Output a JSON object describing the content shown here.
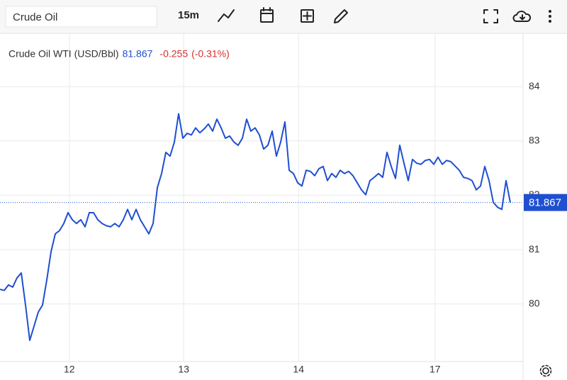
{
  "toolbar": {
    "search_value": "Crude Oil",
    "interval": "15m"
  },
  "chart_data": {
    "type": "line",
    "quote": {
      "name": "Crude Oil WTI (USD/Bbl)",
      "last": 81.867,
      "change": -0.255,
      "change_percent": {
        "value": -0.31,
        "label": "(-0.31%)"
      }
    },
    "x": [
      0,
      1,
      2,
      3,
      4,
      5,
      6,
      7,
      8,
      9,
      10,
      11,
      12,
      13,
      14,
      15,
      16,
      17,
      18,
      19,
      20,
      21,
      22,
      23,
      24,
      25,
      26,
      27,
      28,
      29,
      30,
      31,
      32,
      33,
      34,
      35,
      36,
      37,
      38,
      39,
      40,
      41,
      42,
      43,
      44,
      45,
      46,
      47,
      48,
      49,
      50,
      51,
      52,
      53,
      54,
      55,
      56,
      57,
      58,
      59,
      60,
      61,
      62,
      63,
      64,
      65,
      66,
      67,
      68,
      69,
      70,
      71,
      72,
      73,
      74,
      75,
      76,
      77,
      78,
      79,
      80,
      81,
      82,
      83,
      84,
      85,
      86,
      87,
      88,
      89,
      90,
      91,
      92,
      93,
      94,
      95,
      96,
      97,
      98,
      99,
      100,
      101,
      102,
      103,
      104,
      105,
      106,
      107,
      108,
      109,
      110,
      111,
      112,
      113,
      114,
      115,
      116,
      117,
      118,
      119,
      120
    ],
    "series": [
      {
        "color": "#1f4fd1",
        "values": [
          80.27,
          80.25,
          80.35,
          80.31,
          80.48,
          80.57,
          79.98,
          79.33,
          79.59,
          79.85,
          79.98,
          80.44,
          80.96,
          81.29,
          81.35,
          81.48,
          81.68,
          81.55,
          81.48,
          81.55,
          81.42,
          81.68,
          81.68,
          81.55,
          81.48,
          81.44,
          81.42,
          81.48,
          81.42,
          81.55,
          81.74,
          81.55,
          81.74,
          81.55,
          81.42,
          81.29,
          81.48,
          82.14,
          82.4,
          82.79,
          82.72,
          82.98,
          83.5,
          83.05,
          83.14,
          83.11,
          83.24,
          83.15,
          83.22,
          83.31,
          83.18,
          83.4,
          83.24,
          83.05,
          83.09,
          82.98,
          82.92,
          83.05,
          83.4,
          83.18,
          83.24,
          83.11,
          82.85,
          82.92,
          83.18,
          82.72,
          82.98,
          83.35,
          82.46,
          82.4,
          82.23,
          82.17,
          82.46,
          82.44,
          82.36,
          82.49,
          82.53,
          82.27,
          82.4,
          82.33,
          82.46,
          82.4,
          82.44,
          82.36,
          82.23,
          82.1,
          82.01,
          82.27,
          82.33,
          82.4,
          82.33,
          82.79,
          82.53,
          82.31,
          82.92,
          82.59,
          82.27,
          82.66,
          82.59,
          82.57,
          82.64,
          82.66,
          82.57,
          82.7,
          82.57,
          82.64,
          82.62,
          82.54,
          82.46,
          82.33,
          82.31,
          82.27,
          82.1,
          82.17,
          82.53,
          82.27,
          81.87,
          81.78,
          81.74,
          82.27,
          81.867
        ]
      }
    ],
    "xlim": [
      0,
      123
    ],
    "xticks": [
      {
        "value": 16.3,
        "label": "12"
      },
      {
        "value": 43.2,
        "label": "13"
      },
      {
        "value": 70.2,
        "label": "14"
      },
      {
        "value": 102.3,
        "label": "17"
      }
    ],
    "ylim": [
      78.94,
      84.98
    ],
    "yticks": [
      80,
      81,
      82,
      83,
      84
    ],
    "grid": true
  }
}
